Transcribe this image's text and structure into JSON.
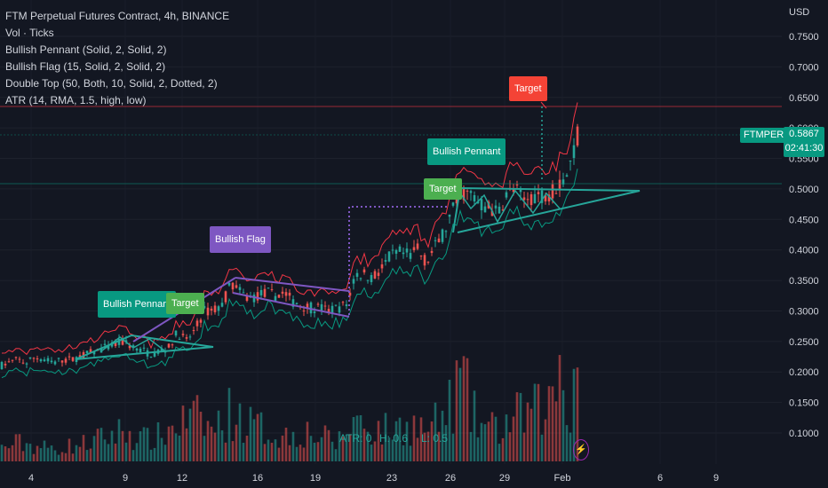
{
  "legend": {
    "title": "FTM Perpetual Futures Contract, 4h, BINANCE",
    "lines": [
      "Vol · Ticks",
      "Bullish Pennant (Solid, 2, Solid, 2)",
      "Bullish Flag (15, Solid, 2, Solid, 2)",
      "Double Top (50, Both, 10, Solid, 2, Dotted, 2)",
      "ATR (14, RMA, 1.5, high, low)"
    ]
  },
  "axis_unit": "USD",
  "price_tag": {
    "symbol": "FTMPERP",
    "price": "0.5867",
    "countdown": "02:41:30"
  },
  "atr_readout": {
    "atr": "ATR: 0",
    "h": "H: 0.6",
    "l": "L: 0.5"
  },
  "labels": {
    "pennant1": "Bullish Pennant",
    "target1": "Target",
    "flag": "Bullish Flag",
    "pennant2": "Bullish Pennant",
    "target2": "Target",
    "target3": "Target"
  },
  "colors": {
    "background": "#131722",
    "up": "#26a69a",
    "down": "#ef5350",
    "pennant": "#26a69a",
    "flag": "#7e57c2",
    "target_green": "#4caf50",
    "target_red": "#f44336",
    "atr_high": "#f23645",
    "atr_low": "#089981"
  },
  "chart_data": {
    "type": "candlestick",
    "yaxis": {
      "ticks": [
        "0.7500",
        "0.7000",
        "0.6500",
        "0.6000",
        "0.5500",
        "0.5000",
        "0.4500",
        "0.4000",
        "0.3500",
        "0.3000",
        "0.2500",
        "0.2000",
        "0.1500",
        "0.1000"
      ],
      "range": [
        0.05,
        0.78
      ]
    },
    "xaxis": {
      "ticks": [
        "4",
        "9",
        "12",
        "16",
        "19",
        "23",
        "26",
        "29",
        "Feb",
        "6",
        "9"
      ]
    },
    "close_path": [
      [
        0,
        0.21
      ],
      [
        10,
        0.215
      ],
      [
        20,
        0.22
      ],
      [
        30,
        0.215
      ],
      [
        40,
        0.225
      ],
      [
        50,
        0.22
      ],
      [
        60,
        0.215
      ],
      [
        70,
        0.22
      ],
      [
        80,
        0.22
      ],
      [
        90,
        0.225
      ],
      [
        100,
        0.23
      ],
      [
        110,
        0.235
      ],
      [
        120,
        0.24
      ],
      [
        130,
        0.245
      ],
      [
        140,
        0.25
      ],
      [
        150,
        0.24
      ],
      [
        160,
        0.235
      ],
      [
        170,
        0.23
      ],
      [
        180,
        0.235
      ],
      [
        190,
        0.24
      ],
      [
        200,
        0.265
      ],
      [
        210,
        0.25
      ],
      [
        220,
        0.27
      ],
      [
        230,
        0.3
      ],
      [
        240,
        0.3
      ],
      [
        250,
        0.31
      ],
      [
        260,
        0.345
      ],
      [
        270,
        0.33
      ],
      [
        280,
        0.32
      ],
      [
        290,
        0.325
      ],
      [
        300,
        0.33
      ],
      [
        310,
        0.325
      ],
      [
        320,
        0.33
      ],
      [
        330,
        0.315
      ],
      [
        340,
        0.31
      ],
      [
        350,
        0.305
      ],
      [
        360,
        0.305
      ],
      [
        370,
        0.3
      ],
      [
        380,
        0.305
      ],
      [
        390,
        0.31
      ],
      [
        400,
        0.36
      ],
      [
        410,
        0.36
      ],
      [
        420,
        0.355
      ],
      [
        430,
        0.37
      ],
      [
        440,
        0.39
      ],
      [
        450,
        0.395
      ],
      [
        460,
        0.39
      ],
      [
        470,
        0.4
      ],
      [
        480,
        0.38
      ],
      [
        490,
        0.405
      ],
      [
        500,
        0.43
      ],
      [
        510,
        0.465
      ],
      [
        520,
        0.495
      ],
      [
        530,
        0.49
      ],
      [
        540,
        0.475
      ],
      [
        550,
        0.47
      ],
      [
        560,
        0.46
      ],
      [
        570,
        0.49
      ],
      [
        580,
        0.5
      ],
      [
        590,
        0.48
      ],
      [
        600,
        0.49
      ],
      [
        610,
        0.49
      ],
      [
        620,
        0.495
      ],
      [
        630,
        0.51
      ],
      [
        640,
        0.53
      ],
      [
        650,
        0.5867
      ]
    ],
    "volume_path": [
      [
        0,
        0.02
      ],
      [
        20,
        0.03
      ],
      [
        40,
        0.025
      ],
      [
        60,
        0.02
      ],
      [
        80,
        0.025
      ],
      [
        100,
        0.03
      ],
      [
        120,
        0.04
      ],
      [
        140,
        0.05
      ],
      [
        160,
        0.035
      ],
      [
        180,
        0.04
      ],
      [
        200,
        0.06
      ],
      [
        220,
        0.07
      ],
      [
        240,
        0.05
      ],
      [
        260,
        0.08
      ],
      [
        280,
        0.06
      ],
      [
        300,
        0.05
      ],
      [
        320,
        0.04
      ],
      [
        340,
        0.05
      ],
      [
        360,
        0.04
      ],
      [
        380,
        0.03
      ],
      [
        400,
        0.07
      ],
      [
        420,
        0.05
      ],
      [
        440,
        0.05
      ],
      [
        460,
        0.06
      ],
      [
        480,
        0.05
      ],
      [
        500,
        0.07
      ],
      [
        510,
        0.1
      ],
      [
        520,
        0.14
      ],
      [
        530,
        0.08
      ],
      [
        540,
        0.06
      ],
      [
        560,
        0.05
      ],
      [
        580,
        0.07
      ],
      [
        600,
        0.08
      ],
      [
        620,
        0.09
      ],
      [
        630,
        0.16
      ],
      [
        640,
        0.07
      ],
      [
        650,
        0.18
      ]
    ]
  }
}
